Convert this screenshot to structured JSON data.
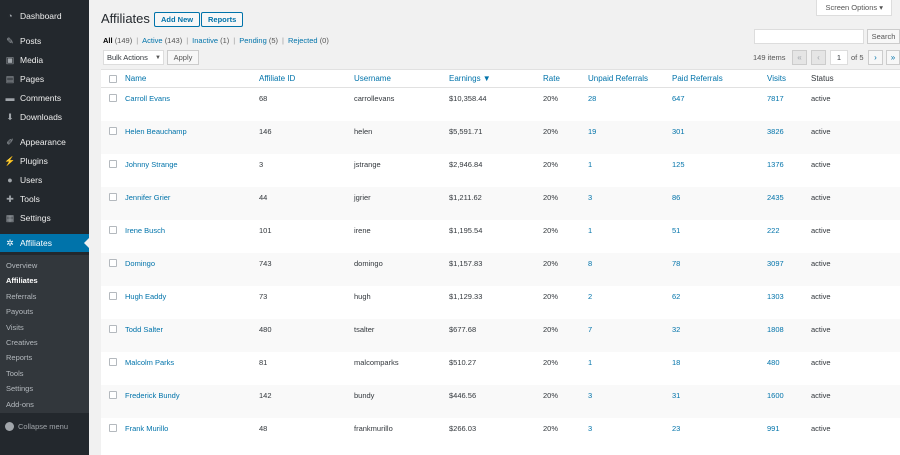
{
  "sidebar": {
    "items": [
      {
        "label": "Dashboard",
        "icon": "dashboard-icon",
        "glyph": "◔"
      },
      {
        "label": "Posts",
        "icon": "pin-icon",
        "glyph": "✎"
      },
      {
        "label": "Media",
        "icon": "media-icon",
        "glyph": "▣"
      },
      {
        "label": "Pages",
        "icon": "pages-icon",
        "glyph": "▤"
      },
      {
        "label": "Comments",
        "icon": "comments-icon",
        "glyph": "▬"
      },
      {
        "label": "Downloads",
        "icon": "download-icon",
        "glyph": "⬇"
      },
      {
        "label": "Appearance",
        "icon": "brush-icon",
        "glyph": "✐"
      },
      {
        "label": "Plugins",
        "icon": "plugin-icon",
        "glyph": "⚡"
      },
      {
        "label": "Users",
        "icon": "users-icon",
        "glyph": "●"
      },
      {
        "label": "Tools",
        "icon": "wrench-icon",
        "glyph": "✚"
      },
      {
        "label": "Settings",
        "icon": "settings-icon",
        "glyph": "▦"
      },
      {
        "label": "Affiliates",
        "icon": "affiliates-icon",
        "glyph": "✲"
      }
    ],
    "submenu": [
      "Overview",
      "Affiliates",
      "Referrals",
      "Payouts",
      "Visits",
      "Creatives",
      "Reports",
      "Tools",
      "Settings",
      "Add-ons"
    ],
    "collapse_label": "Collapse menu"
  },
  "screen_options": "Screen Options ▾",
  "page": {
    "title": "Affiliates",
    "add_new": "Add New",
    "reports": "Reports"
  },
  "filters": [
    {
      "label": "All",
      "count": "(149)"
    },
    {
      "label": "Active",
      "count": "(143)"
    },
    {
      "label": "Inactive",
      "count": "(1)"
    },
    {
      "label": "Pending",
      "count": "(5)"
    },
    {
      "label": "Rejected",
      "count": "(0)"
    }
  ],
  "search": {
    "button": "Search",
    "value": ""
  },
  "bulk": {
    "selected": "Bulk Actions",
    "apply": "Apply"
  },
  "pagination": {
    "items": "149 items",
    "first": "«",
    "prev": "‹",
    "current": "1",
    "of": "of 5",
    "next": "›",
    "last": "»"
  },
  "table": {
    "columns": [
      "Name",
      "Affiliate ID",
      "Username",
      "Earnings ▼",
      "Rate",
      "Unpaid Referrals",
      "Paid Referrals",
      "Visits",
      "Status"
    ],
    "rows": [
      [
        "Carroll Evans",
        "68",
        "carrollevans",
        "$10,358.44",
        "20%",
        "28",
        "647",
        "7817",
        "active"
      ],
      [
        "Helen Beauchamp",
        "146",
        "helen",
        "$5,591.71",
        "20%",
        "19",
        "301",
        "3826",
        "active"
      ],
      [
        "Johnny Strange",
        "3",
        "jstrange",
        "$2,946.84",
        "20%",
        "1",
        "125",
        "1376",
        "active"
      ],
      [
        "Jennifer Grier",
        "44",
        "jgrier",
        "$1,211.62",
        "20%",
        "3",
        "86",
        "2435",
        "active"
      ],
      [
        "Irene Busch",
        "101",
        "irene",
        "$1,195.54",
        "20%",
        "1",
        "51",
        "222",
        "active"
      ],
      [
        "Domingo",
        "743",
        "domingo",
        "$1,157.83",
        "20%",
        "8",
        "78",
        "3097",
        "active"
      ],
      [
        "Hugh Eaddy",
        "73",
        "hugh",
        "$1,129.33",
        "20%",
        "2",
        "62",
        "1303",
        "active"
      ],
      [
        "Todd Salter",
        "480",
        "tsalter",
        "$677.68",
        "20%",
        "7",
        "32",
        "1808",
        "active"
      ],
      [
        "Malcolm Parks",
        "81",
        "malcomparks",
        "$510.27",
        "20%",
        "1",
        "18",
        "480",
        "active"
      ],
      [
        "Frederick Bundy",
        "142",
        "bundy",
        "$446.56",
        "20%",
        "3",
        "31",
        "1600",
        "active"
      ],
      [
        "Frank Murillo",
        "48",
        "frankmurillo",
        "$266.03",
        "20%",
        "3",
        "23",
        "991",
        "active"
      ]
    ]
  }
}
